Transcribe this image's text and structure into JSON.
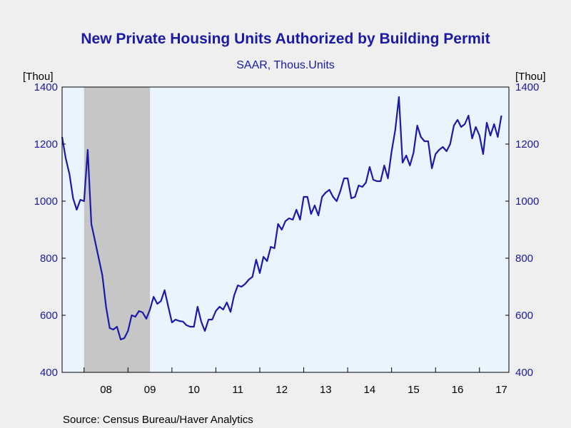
{
  "chart_data": {
    "type": "line",
    "title": "New Private Housing Units Authorized by Building Permit",
    "subtitle": "SAAR, Thous.Units",
    "y_unit_left": "[Thou]",
    "y_unit_right": "[Thou]",
    "ylim": [
      400,
      1400
    ],
    "yticks": [
      400,
      600,
      800,
      1000,
      1200,
      1400
    ],
    "ytick_labels": [
      "400",
      "600",
      "800",
      "1000",
      "1200",
      "1400"
    ],
    "xlim": [
      2007.5,
      2017.67
    ],
    "xtick_labels": [
      {
        "label": "08",
        "x": 2008.5
      },
      {
        "label": "09",
        "x": 2009.5
      },
      {
        "label": "10",
        "x": 2010.5
      },
      {
        "label": "11",
        "x": 2011.5
      },
      {
        "label": "12",
        "x": 2012.5
      },
      {
        "label": "13",
        "x": 2013.5
      },
      {
        "label": "14",
        "x": 2014.5
      },
      {
        "label": "15",
        "x": 2015.5
      },
      {
        "label": "16",
        "x": 2016.5
      },
      {
        "label": "17",
        "x": 2017.5
      }
    ],
    "year_boundaries": [
      2008,
      2009,
      2010,
      2011,
      2012,
      2013,
      2014,
      2015,
      2016,
      2017
    ],
    "recession_band": [
      2008.0,
      2009.5
    ],
    "grid": false,
    "source": "Source:  Census Bureau/Haver Analytics",
    "colors": {
      "line": "#1a1aa6",
      "plot_bg": "#eaf4fe",
      "recession": "#c6c6c6",
      "page_bg": "#efefef",
      "title": "#1a1aa6"
    },
    "series": [
      {
        "start": 2007.5,
        "step": 0.0833333,
        "values": [
          1225,
          1150,
          1095,
          1010,
          970,
          1005,
          1000,
          1180,
          920,
          860,
          800,
          740,
          630,
          555,
          550,
          560,
          515,
          520,
          545,
          600,
          595,
          615,
          610,
          588,
          620,
          665,
          640,
          650,
          688,
          630,
          575,
          585,
          580,
          578,
          565,
          560,
          560,
          630,
          578,
          545,
          585,
          585,
          615,
          630,
          620,
          645,
          612,
          670,
          705,
          700,
          710,
          725,
          735,
          795,
          748,
          805,
          790,
          840,
          835,
          920,
          900,
          930,
          940,
          935,
          970,
          935,
          1015,
          1015,
          955,
          985,
          950,
          1015,
          1030,
          1040,
          1015,
          1000,
          1035,
          1080,
          1080,
          1010,
          1015,
          1055,
          1050,
          1065,
          1120,
          1075,
          1070,
          1070,
          1125,
          1080,
          1175,
          1250,
          1365,
          1135,
          1160,
          1125,
          1170,
          1265,
          1225,
          1210,
          1210,
          1115,
          1165,
          1180,
          1190,
          1175,
          1200,
          1265,
          1285,
          1260,
          1270,
          1300,
          1220,
          1260,
          1230,
          1165,
          1275,
          1230,
          1270,
          1225,
          1300
        ]
      }
    ]
  }
}
